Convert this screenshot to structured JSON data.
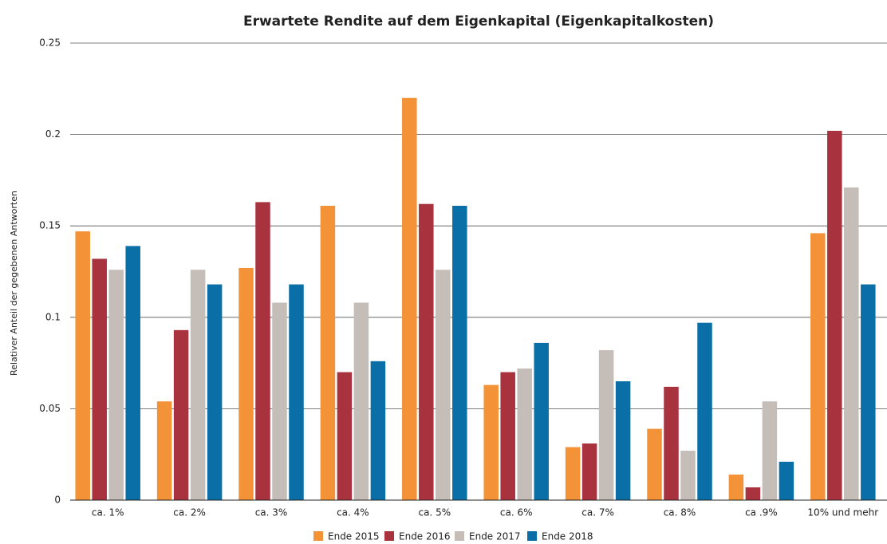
{
  "chart_data": {
    "type": "bar",
    "title": "Erwartete Rendite auf dem Eigenkapital (Eigenkapitalkosten)",
    "y_label": "Relativer Anteil der gegebenen Antworten",
    "categories": [
      "ca. 1%",
      "ca. 2%",
      "ca. 3%",
      "ca. 4%",
      "ca. 5%",
      "ca. 6%",
      "ca. 7%",
      "ca. 8%",
      "ca .9%",
      "10% und mehr"
    ],
    "series": [
      {
        "name": "Ende 2015",
        "color": "#f39237",
        "values": [
          0.147,
          0.054,
          0.127,
          0.161,
          0.22,
          0.063,
          0.029,
          0.039,
          0.014,
          0.146
        ]
      },
      {
        "name": "Ende 2016",
        "color": "#a8323e",
        "values": [
          0.132,
          0.093,
          0.163,
          0.07,
          0.162,
          0.07,
          0.031,
          0.062,
          0.007,
          0.202
        ]
      },
      {
        "name": "Ende 2017",
        "color": "#c4bdb8",
        "values": [
          0.126,
          0.126,
          0.108,
          0.108,
          0.126,
          0.072,
          0.082,
          0.027,
          0.054,
          0.171
        ]
      },
      {
        "name": "Ende 2018",
        "color": "#0a6fa6",
        "values": [
          0.139,
          0.118,
          0.118,
          0.076,
          0.161,
          0.086,
          0.065,
          0.097,
          0.021,
          0.118
        ]
      }
    ],
    "ylim": [
      0,
      0.25
    ],
    "yticks": [
      0,
      0.05,
      0.1,
      0.15,
      0.2,
      0.25
    ],
    "grid": true,
    "legend": "bottom"
  }
}
